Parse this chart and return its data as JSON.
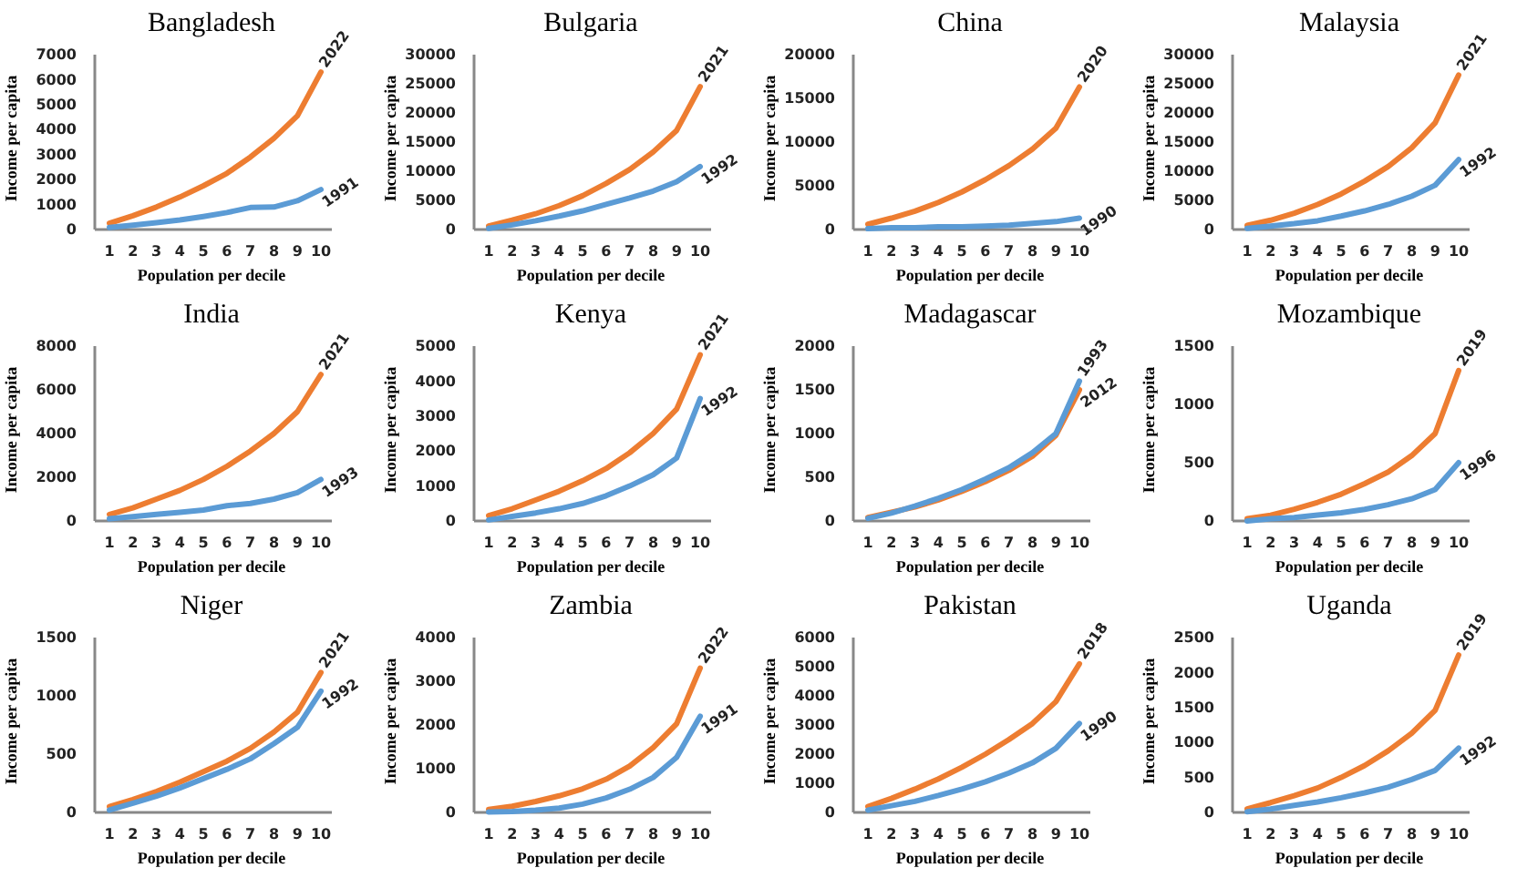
{
  "chart_data": [
    {
      "type": "line",
      "title": "Bangladesh",
      "xlabel": "Population per decile",
      "ylabel": "Income per capita",
      "categories": [
        "1",
        "2",
        "3",
        "4",
        "5",
        "6",
        "7",
        "8",
        "9",
        "10"
      ],
      "ylim": [
        0,
        7000
      ],
      "yticks": [
        0,
        1000,
        2000,
        3000,
        4000,
        5000,
        6000,
        7000
      ],
      "grid": false,
      "legend": false,
      "series": [
        {
          "name": "2022",
          "color": "#ed7d31",
          "values": [
            250,
            550,
            900,
            1300,
            1750,
            2250,
            2900,
            3650,
            4550,
            6300
          ]
        },
        {
          "name": "1991",
          "color": "#5b9bd5",
          "values": [
            80,
            170,
            270,
            380,
            520,
            680,
            880,
            900,
            1150,
            1600
          ]
        }
      ]
    },
    {
      "type": "line",
      "title": "Bulgaria",
      "xlabel": "Population per decile",
      "ylabel": "Income per capita",
      "categories": [
        "1",
        "2",
        "3",
        "4",
        "5",
        "6",
        "7",
        "8",
        "9",
        "10"
      ],
      "ylim": [
        0,
        30000
      ],
      "yticks": [
        0,
        5000,
        10000,
        15000,
        20000,
        25000,
        30000
      ],
      "grid": false,
      "legend": false,
      "series": [
        {
          "name": "2021",
          "color": "#ed7d31",
          "values": [
            600,
            1600,
            2700,
            4100,
            5800,
            7900,
            10300,
            13300,
            17000,
            24500
          ]
        },
        {
          "name": "1992",
          "color": "#5b9bd5",
          "values": [
            200,
            800,
            1500,
            2300,
            3200,
            4300,
            5400,
            6600,
            8200,
            10800
          ]
        }
      ]
    },
    {
      "type": "line",
      "title": "China",
      "xlabel": "Population per decile",
      "ylabel": "Income per capita",
      "categories": [
        "1",
        "2",
        "3",
        "4",
        "5",
        "6",
        "7",
        "8",
        "9",
        "10"
      ],
      "ylim": [
        0,
        20000
      ],
      "yticks": [
        0,
        5000,
        10000,
        15000,
        20000
      ],
      "grid": false,
      "legend": false,
      "series": [
        {
          "name": "2020",
          "color": "#ed7d31",
          "values": [
            600,
            1300,
            2100,
            3100,
            4300,
            5700,
            7300,
            9200,
            11600,
            16300
          ]
        },
        {
          "name": "1990",
          "color": "#5b9bd5",
          "values": [
            100,
            200,
            200,
            300,
            300,
            400,
            500,
            700,
            900,
            1300
          ]
        }
      ]
    },
    {
      "type": "line",
      "title": "Malaysia",
      "xlabel": "Population per decile",
      "ylabel": "Income per capita",
      "categories": [
        "1",
        "2",
        "3",
        "4",
        "5",
        "6",
        "7",
        "8",
        "9",
        "10"
      ],
      "ylim": [
        0,
        30000
      ],
      "yticks": [
        0,
        5000,
        10000,
        15000,
        20000,
        25000,
        30000
      ],
      "grid": false,
      "legend": false,
      "series": [
        {
          "name": "2021",
          "color": "#ed7d31",
          "values": [
            700,
            1600,
            2800,
            4300,
            6100,
            8300,
            10800,
            14000,
            18300,
            26500
          ]
        },
        {
          "name": "1992",
          "color": "#5b9bd5",
          "values": [
            200,
            600,
            1000,
            1500,
            2300,
            3200,
            4300,
            5700,
            7600,
            12000
          ]
        }
      ]
    },
    {
      "type": "line",
      "title": "India",
      "xlabel": "Population per decile",
      "ylabel": "Income per capita",
      "categories": [
        "1",
        "2",
        "3",
        "4",
        "5",
        "6",
        "7",
        "8",
        "9",
        "10"
      ],
      "ylim": [
        0,
        8000
      ],
      "yticks": [
        0,
        2000,
        4000,
        6000,
        8000
      ],
      "grid": false,
      "legend": false,
      "series": [
        {
          "name": "2021",
          "color": "#ed7d31",
          "values": [
            300,
            600,
            1000,
            1400,
            1900,
            2500,
            3200,
            4000,
            5000,
            6700
          ]
        },
        {
          "name": "1993",
          "color": "#5b9bd5",
          "values": [
            100,
            200,
            300,
            400,
            500,
            700,
            800,
            1000,
            1300,
            1900
          ]
        }
      ]
    },
    {
      "type": "line",
      "title": "Kenya",
      "xlabel": "Population per decile",
      "ylabel": "Income per capita",
      "categories": [
        "1",
        "2",
        "3",
        "4",
        "5",
        "6",
        "7",
        "8",
        "9",
        "10"
      ],
      "ylim": [
        0,
        5000
      ],
      "yticks": [
        0,
        1000,
        2000,
        3000,
        4000,
        5000
      ],
      "grid": false,
      "legend": false,
      "series": [
        {
          "name": "2021",
          "color": "#ed7d31",
          "values": [
            150,
            350,
            600,
            850,
            1150,
            1500,
            1950,
            2500,
            3200,
            4750
          ]
        },
        {
          "name": "1992",
          "color": "#5b9bd5",
          "values": [
            30,
            130,
            230,
            350,
            500,
            720,
            1000,
            1320,
            1800,
            3500
          ]
        }
      ]
    },
    {
      "type": "line",
      "title": "Madagascar",
      "xlabel": "Population per decile",
      "ylabel": "Income per capita",
      "categories": [
        "1",
        "2",
        "3",
        "4",
        "5",
        "6",
        "7",
        "8",
        "9",
        "10"
      ],
      "ylim": [
        0,
        2000
      ],
      "yticks": [
        0,
        500,
        1000,
        1500,
        2000
      ],
      "grid": false,
      "legend": false,
      "series": [
        {
          "name": "2012",
          "color": "#ed7d31",
          "values": [
            40,
            100,
            160,
            240,
            340,
            450,
            580,
            740,
            980,
            1500
          ]
        },
        {
          "name": "1993",
          "color": "#5b9bd5",
          "values": [
            30,
            90,
            170,
            260,
            360,
            480,
            610,
            780,
            1000,
            1600
          ]
        }
      ]
    },
    {
      "type": "line",
      "title": "Mozambique",
      "xlabel": "Population per decile",
      "ylabel": "Income per capita",
      "categories": [
        "1",
        "2",
        "3",
        "4",
        "5",
        "6",
        "7",
        "8",
        "9",
        "10"
      ],
      "ylim": [
        0,
        1500
      ],
      "yticks": [
        0,
        500,
        1000,
        1500
      ],
      "grid": false,
      "legend": false,
      "series": [
        {
          "name": "2019",
          "color": "#ed7d31",
          "values": [
            20,
            50,
            100,
            160,
            230,
            320,
            420,
            560,
            750,
            1290
          ]
        },
        {
          "name": "1996",
          "color": "#5b9bd5",
          "values": [
            0,
            20,
            30,
            50,
            70,
            100,
            140,
            190,
            270,
            500
          ]
        }
      ]
    },
    {
      "type": "line",
      "title": "Niger",
      "xlabel": "Population per decile",
      "ylabel": "Income per capita",
      "categories": [
        "1",
        "2",
        "3",
        "4",
        "5",
        "6",
        "7",
        "8",
        "9",
        "10"
      ],
      "ylim": [
        0,
        1500
      ],
      "yticks": [
        0,
        500,
        1000,
        1500
      ],
      "grid": false,
      "legend": false,
      "series": [
        {
          "name": "2021",
          "color": "#ed7d31",
          "values": [
            50,
            110,
            180,
            260,
            350,
            440,
            550,
            690,
            860,
            1200
          ]
        },
        {
          "name": "1992",
          "color": "#5b9bd5",
          "values": [
            20,
            80,
            140,
            210,
            290,
            370,
            460,
            590,
            730,
            1040
          ]
        }
      ]
    },
    {
      "type": "line",
      "title": "Zambia",
      "xlabel": "Population per decile",
      "ylabel": "Income per capita",
      "categories": [
        "1",
        "2",
        "3",
        "4",
        "5",
        "6",
        "7",
        "8",
        "9",
        "10"
      ],
      "ylim": [
        0,
        4000
      ],
      "yticks": [
        0,
        1000,
        2000,
        3000,
        4000
      ],
      "grid": false,
      "legend": false,
      "series": [
        {
          "name": "2022",
          "color": "#ed7d31",
          "values": [
            70,
            140,
            250,
            380,
            540,
            760,
            1060,
            1480,
            2030,
            3300
          ]
        },
        {
          "name": "1991",
          "color": "#5b9bd5",
          "values": [
            10,
            20,
            50,
            100,
            190,
            330,
            530,
            800,
            1260,
            2200
          ]
        }
      ]
    },
    {
      "type": "line",
      "title": "Pakistan",
      "xlabel": "Population per decile",
      "ylabel": "Income per capita",
      "categories": [
        "1",
        "2",
        "3",
        "4",
        "5",
        "6",
        "7",
        "8",
        "9",
        "10"
      ],
      "ylim": [
        0,
        6000
      ],
      "yticks": [
        0,
        1000,
        2000,
        3000,
        4000,
        5000,
        6000
      ],
      "grid": false,
      "legend": false,
      "series": [
        {
          "name": "2018",
          "color": "#ed7d31",
          "values": [
            200,
            480,
            800,
            1150,
            1550,
            2000,
            2500,
            3050,
            3800,
            5100
          ]
        },
        {
          "name": "1990",
          "color": "#5b9bd5",
          "values": [
            80,
            230,
            380,
            580,
            800,
            1050,
            1350,
            1700,
            2200,
            3050
          ]
        }
      ]
    },
    {
      "type": "line",
      "title": "Uganda",
      "xlabel": "Population per decile",
      "ylabel": "Income per capita",
      "categories": [
        "1",
        "2",
        "3",
        "4",
        "5",
        "6",
        "7",
        "8",
        "9",
        "10"
      ],
      "ylim": [
        0,
        2500
      ],
      "yticks": [
        0,
        500,
        1000,
        1500,
        2000,
        2500
      ],
      "grid": false,
      "legend": false,
      "series": [
        {
          "name": "2019",
          "color": "#ed7d31",
          "values": [
            50,
            140,
            240,
            350,
            500,
            670,
            880,
            1130,
            1460,
            2250
          ]
        },
        {
          "name": "1992",
          "color": "#5b9bd5",
          "values": [
            10,
            50,
            100,
            150,
            210,
            280,
            360,
            470,
            600,
            920
          ]
        }
      ]
    }
  ]
}
